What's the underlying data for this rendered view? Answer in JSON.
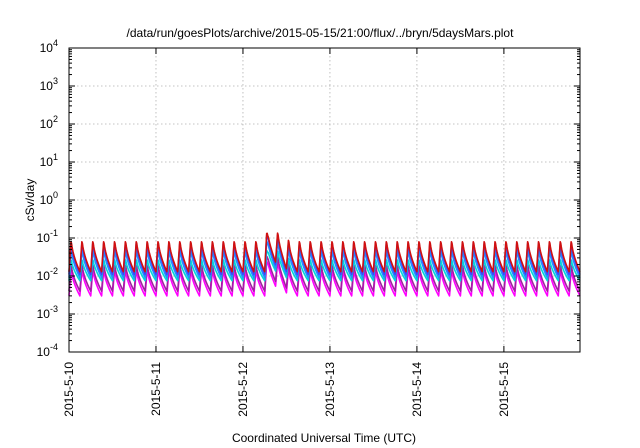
{
  "chart_data": {
    "type": "line",
    "title": "/data/run/goesPlots/archive/2015-05-15/21:00/flux/../bryn/5daysMars.plot",
    "xlabel": "Coordinated Universal Time (UTC)",
    "ylabel": "cSv/day",
    "yscale": "log",
    "ylim": [
      0.0001,
      10000
    ],
    "yticks": [
      {
        "value": 0.0001,
        "base": "10",
        "exp": "-4"
      },
      {
        "value": 0.001,
        "base": "10",
        "exp": "-3"
      },
      {
        "value": 0.01,
        "base": "10",
        "exp": "-2"
      },
      {
        "value": 0.1,
        "base": "10",
        "exp": "-1"
      },
      {
        "value": 1,
        "base": "10",
        "exp": "0"
      },
      {
        "value": 10,
        "base": "10",
        "exp": "1"
      },
      {
        "value": 100,
        "base": "10",
        "exp": "2"
      },
      {
        "value": 1000,
        "base": "10",
        "exp": "3"
      },
      {
        "value": 10000,
        "base": "10",
        "exp": "4"
      }
    ],
    "xlim": [
      "2015-05-10 00:00",
      "2015-05-15 21:00"
    ],
    "xticks": [
      "2015-5-10",
      "2015-5-11",
      "2015-5-12",
      "2015-5-13",
      "2015-5-14",
      "2015-5-15"
    ],
    "grid": true,
    "sawtooth_period_hours": 3,
    "event": {
      "start": "2015-05-12 06:00",
      "peak": "2015-05-12 07:00",
      "end": "2015-05-12 13:00",
      "factor": 2.2
    },
    "series": [
      {
        "color": "#d01010",
        "peak": 0.095,
        "trough": 0.013
      },
      {
        "color": "#4040ff",
        "peak": 0.085,
        "trough": 0.011
      },
      {
        "color": "#2090ff",
        "peak": 0.055,
        "trough": 0.009
      },
      {
        "color": "#00d8d8",
        "peak": 0.03,
        "trough": 0.0075
      },
      {
        "color": "#a020a0",
        "peak": 0.022,
        "trough": 0.004
      },
      {
        "color": "#ff00ff",
        "peak": 0.016,
        "trough": 0.003
      }
    ]
  }
}
